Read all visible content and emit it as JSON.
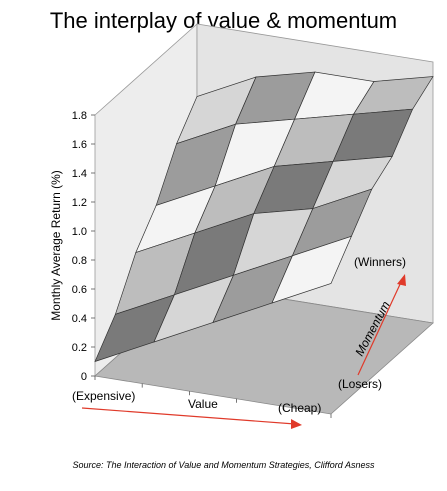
{
  "chart_data": {
    "type": "surface3d",
    "title": "The interplay of value & momentum",
    "zlabel": "Monthly Average Return (%)",
    "zlim": [
      0,
      1.8
    ],
    "zticks": [
      "1.8",
      "1.6",
      "1.4",
      "1.2",
      "1.0",
      "0.8",
      "0.6",
      "0.4",
      "0.2",
      "0"
    ],
    "value_axis": {
      "label": "Value",
      "low": "(Expensive)",
      "high": "(Cheap)"
    },
    "momentum_axis": {
      "label": "Momentum",
      "low": "(Losers)",
      "high": "(Winners)"
    },
    "grid": true,
    "surface_rows_losers_to_winners_by_value_expensive_to_cheap": [
      [
        0.1,
        0.3,
        0.5,
        0.7,
        0.9
      ],
      [
        0.3,
        0.5,
        0.7,
        0.9,
        1.1
      ],
      [
        0.6,
        0.8,
        1.0,
        1.1,
        1.3
      ],
      [
        0.8,
        1.0,
        1.2,
        1.3,
        1.4
      ],
      [
        1.1,
        1.3,
        1.4,
        1.5,
        1.6
      ],
      [
        1.3,
        1.5,
        1.6,
        1.6,
        1.7
      ]
    ]
  },
  "source": "Source: The Interaction of Value and Momentum Strategies, Clifford Asness",
  "colors": {
    "accent_arrow": "#e03a2a",
    "floor": "#b8b8b8",
    "wall": "#e8e8e8"
  }
}
